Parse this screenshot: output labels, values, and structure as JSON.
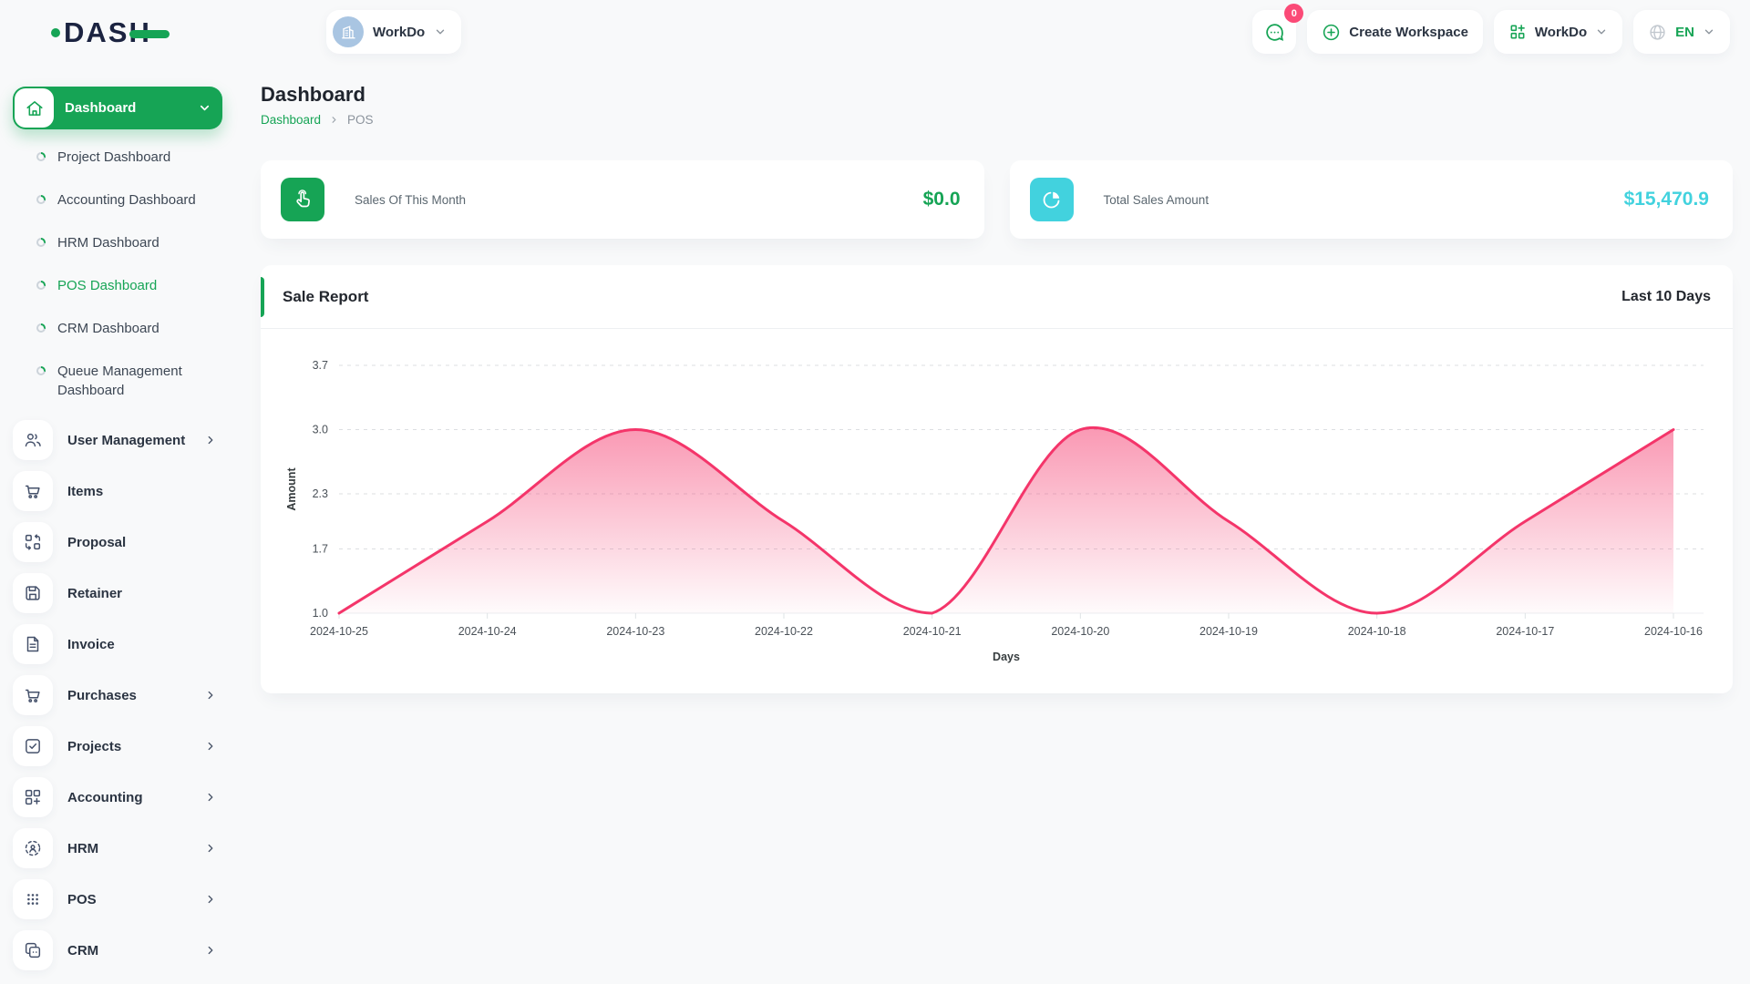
{
  "topbar": {
    "logo_text": "DASH",
    "workspace_button": {
      "label": "WorkDo"
    },
    "messages_badge": "0",
    "create_workspace_label": "Create Workspace",
    "workspace_switcher_label": "WorkDo",
    "language": "EN"
  },
  "sidebar": {
    "dashboard": {
      "label": "Dashboard"
    },
    "submenu": [
      {
        "label": "Project Dashboard",
        "active": false
      },
      {
        "label": "Accounting Dashboard",
        "active": false
      },
      {
        "label": "HRM Dashboard",
        "active": false
      },
      {
        "label": "POS Dashboard",
        "active": true
      },
      {
        "label": "CRM Dashboard",
        "active": false
      },
      {
        "label": "Queue Management Dashboard",
        "active": false
      }
    ],
    "menu": [
      {
        "label": "User Management",
        "icon": "users-icon",
        "expandable": true
      },
      {
        "label": "Items",
        "icon": "cart-icon",
        "expandable": false
      },
      {
        "label": "Proposal",
        "icon": "proposal-icon",
        "expandable": false
      },
      {
        "label": "Retainer",
        "icon": "retainer-icon",
        "expandable": false
      },
      {
        "label": "Invoice",
        "icon": "invoice-icon",
        "expandable": false
      },
      {
        "label": "Purchases",
        "icon": "cart-icon",
        "expandable": true
      },
      {
        "label": "Projects",
        "icon": "projects-icon",
        "expandable": true
      },
      {
        "label": "Accounting",
        "icon": "accounting-icon",
        "expandable": true
      },
      {
        "label": "HRM",
        "icon": "hrm-icon",
        "expandable": true
      },
      {
        "label": "POS",
        "icon": "pos-icon",
        "expandable": true
      },
      {
        "label": "CRM",
        "icon": "crm-icon",
        "expandable": true
      }
    ]
  },
  "page": {
    "title": "Dashboard",
    "breadcrumb": {
      "root": "Dashboard",
      "current": "POS"
    }
  },
  "stats": [
    {
      "label": "Sales Of This Month",
      "value": "$0.0",
      "icon": "tap-icon",
      "color": "#16a455"
    },
    {
      "label": "Total Sales Amount",
      "value": "$15,470.9",
      "icon": "pie-chart-icon",
      "color": "#42d2de"
    }
  ],
  "sale_report": {
    "title": "Sale Report",
    "range_label": "Last 10 Days"
  },
  "chart_data": {
    "type": "area",
    "title": "Sale Report",
    "x": [
      "2024-10-25",
      "2024-10-24",
      "2024-10-23",
      "2024-10-22",
      "2024-10-21",
      "2024-10-20",
      "2024-10-19",
      "2024-10-18",
      "2024-10-17",
      "2024-10-16"
    ],
    "values": [
      1.0,
      2.0,
      3.0,
      2.0,
      1.0,
      3.0,
      2.0,
      1.0,
      2.0,
      3.0
    ],
    "xlabel": "Days",
    "ylabel": "Amount",
    "ylim": [
      1.0,
      3.7
    ],
    "yticks": [
      3.7,
      3.0,
      2.3,
      1.7,
      1.0
    ],
    "ytick_labels": [
      "3.7",
      "3.0",
      "2.3",
      "1.7",
      "1.0"
    ],
    "grid": "dashed-horizontal",
    "legend": "none",
    "line_color": "#f4356a",
    "fill_gradient_top": "rgba(244,53,106,0.50)",
    "fill_gradient_bottom": "rgba(244,53,106,0.02)"
  },
  "colors": {
    "primary_green": "#16a455",
    "accent_pink": "#f4356a",
    "accent_cyan": "#42d2de",
    "badge_pink": "#fb4a77",
    "page_bg": "#f8f9fa"
  }
}
